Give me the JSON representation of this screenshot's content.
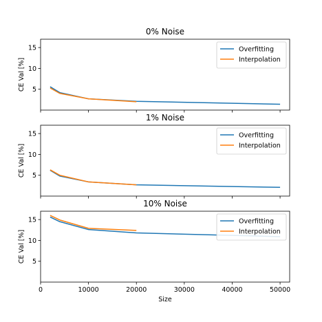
{
  "colors": {
    "overfitting": "#1f77b4",
    "interpolation": "#ff7f0e",
    "axes": "#000000",
    "legend_border": "#cccccc"
  },
  "chart_data": [
    {
      "type": "line",
      "title": "0% Noise",
      "ylabel": "CE Val [%]",
      "xlabel": "",
      "xlim": [
        0,
        52000
      ],
      "ylim": [
        0,
        17
      ],
      "xticks": [
        0,
        10000,
        20000,
        30000,
        40000,
        50000
      ],
      "xtick_labels": [],
      "yticks": [
        5,
        10,
        15
      ],
      "ytick_labels": [
        "5",
        "10",
        "15"
      ],
      "legend": "upper right",
      "grid": false,
      "series": [
        {
          "name": "Overfitting",
          "x": [
            2000,
            4000,
            10000,
            20000,
            50000
          ],
          "y": [
            5.6,
            4.2,
            2.7,
            2.1,
            1.4
          ]
        },
        {
          "name": "Interpolation",
          "x": [
            2000,
            4000,
            10000,
            20000
          ],
          "y": [
            5.3,
            4.0,
            2.7,
            2.0
          ]
        }
      ]
    },
    {
      "type": "line",
      "title": "1% Noise",
      "ylabel": "CE Val [%]",
      "xlabel": "",
      "xlim": [
        0,
        52000
      ],
      "ylim": [
        0,
        17
      ],
      "xticks": [
        0,
        10000,
        20000,
        30000,
        40000,
        50000
      ],
      "xtick_labels": [],
      "yticks": [
        5,
        10,
        15
      ],
      "ytick_labels": [
        "5",
        "10",
        "15"
      ],
      "legend": "upper right",
      "grid": false,
      "series": [
        {
          "name": "Overfitting",
          "x": [
            2000,
            4000,
            10000,
            20000,
            50000
          ],
          "y": [
            6.2,
            4.8,
            3.4,
            2.7,
            2.1
          ]
        },
        {
          "name": "Interpolation",
          "x": [
            2000,
            4000,
            10000,
            20000
          ],
          "y": [
            6.3,
            5.0,
            3.4,
            2.7
          ]
        }
      ]
    },
    {
      "type": "line",
      "title": "10% Noise",
      "ylabel": "CE Val [%]",
      "xlabel": "Size",
      "xlim": [
        0,
        52000
      ],
      "ylim": [
        0,
        17
      ],
      "xticks": [
        0,
        10000,
        20000,
        30000,
        40000,
        50000
      ],
      "xtick_labels": [
        "0",
        "10000",
        "20000",
        "30000",
        "40000",
        "50000"
      ],
      "yticks": [
        5,
        10,
        15
      ],
      "ytick_labels": [
        "5",
        "10",
        "15"
      ],
      "legend": "upper right",
      "grid": false,
      "series": [
        {
          "name": "Overfitting",
          "x": [
            2000,
            4000,
            10000,
            20000,
            50000
          ],
          "y": [
            15.6,
            14.5,
            12.6,
            11.8,
            10.9
          ]
        },
        {
          "name": "Interpolation",
          "x": [
            2000,
            4000,
            10000,
            20000
          ],
          "y": [
            16.0,
            14.9,
            12.9,
            12.4
          ]
        }
      ]
    }
  ]
}
